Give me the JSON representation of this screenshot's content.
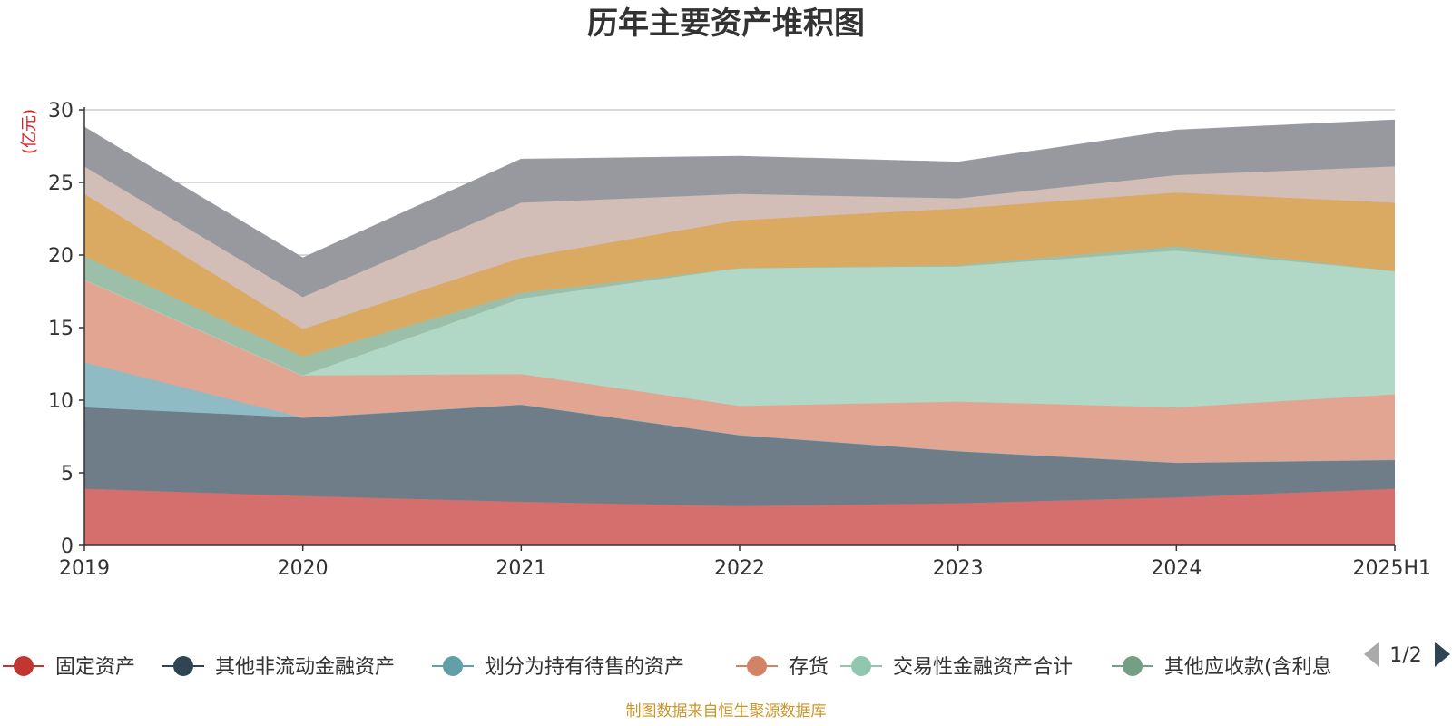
{
  "chart_data": {
    "type": "area",
    "stacked": true,
    "title": "历年主要资产堆积图",
    "ylabel": "(亿元)",
    "categories": [
      "2019",
      "2020",
      "2021",
      "2022",
      "2023",
      "2024",
      "2025H1"
    ],
    "ylim": [
      0,
      30
    ],
    "yticks": [
      0,
      5,
      10,
      15,
      20,
      25,
      30
    ],
    "grid": true,
    "legend_position": "bottom",
    "series": [
      {
        "name": "固定资产",
        "color": "#d56f6d",
        "legend_color": "#c23531",
        "values": [
          3.9,
          3.4,
          3.0,
          2.7,
          2.9,
          3.3,
          3.9
        ]
      },
      {
        "name": "其他非流动金融资产",
        "color": "#6e7d88",
        "legend_color": "#2f4554",
        "values": [
          5.6,
          5.4,
          6.7,
          4.9,
          3.6,
          2.4,
          2.0
        ]
      },
      {
        "name": "划分为持有待售的资产",
        "color": "#8fbbc5",
        "legend_color": "#61a0a8",
        "values": [
          3.1,
          0.0,
          0.0,
          0.0,
          0.0,
          0.0,
          0.0
        ]
      },
      {
        "name": "存货",
        "color": "#e2a592",
        "legend_color": "#d48265",
        "values": [
          5.7,
          2.9,
          2.1,
          2.0,
          3.4,
          3.8,
          4.5
        ]
      },
      {
        "name": "交易性金融资产合计",
        "color": "#b1d8c6",
        "legend_color": "#91c7ae",
        "values": [
          0.0,
          0.0,
          5.2,
          9.5,
          9.3,
          10.8,
          8.5
        ]
      },
      {
        "name": "其他应收款(含利息",
        "color": "#9cbfaa",
        "legend_color": "#749f83",
        "values": [
          1.6,
          1.3,
          0.4,
          0.0,
          0.1,
          0.3,
          0.0
        ]
      },
      {
        "name": "",
        "color": "#dbaa62",
        "values": [
          4.3,
          1.9,
          2.4,
          3.3,
          3.9,
          3.7,
          4.7
        ]
      },
      {
        "name": "",
        "color": "#d2bdb7",
        "values": [
          1.9,
          2.2,
          3.8,
          1.8,
          0.7,
          1.2,
          2.5
        ]
      },
      {
        "name": "",
        "color": "#98999e",
        "values": [
          2.7,
          2.7,
          3.0,
          2.6,
          2.5,
          3.1,
          3.2
        ]
      }
    ]
  },
  "legend": {
    "page_indicator": "1/2",
    "prev_icon": "triangle-left-icon",
    "next_icon": "triangle-right-icon"
  },
  "source_note": "制图数据来自恒生聚源数据库"
}
